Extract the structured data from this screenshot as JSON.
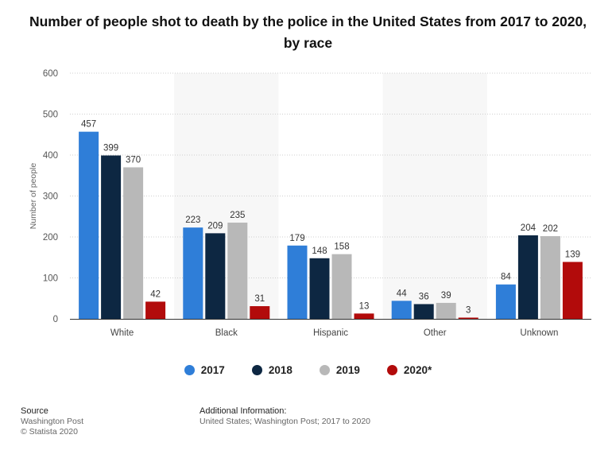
{
  "chart_data": {
    "type": "bar",
    "title": "Number of people shot to death by the police in the United States from 2017 to 2020, by race",
    "title_line1": "Number of people shot to death by the police in the United States from 2017 to 2020,",
    "title_line2": "by race",
    "xlabel": "",
    "ylabel": "Number of people",
    "ylim": [
      0,
      600
    ],
    "yticks": [
      0,
      100,
      200,
      300,
      400,
      500,
      600
    ],
    "grid": true,
    "legend_position": "bottom",
    "categories": [
      "White",
      "Black",
      "Hispanic",
      "Other",
      "Unknown"
    ],
    "series": [
      {
        "name": "2017",
        "color": "#2f7ed8",
        "values": [
          457,
          223,
          179,
          44,
          84
        ]
      },
      {
        "name": "2018",
        "color": "#0d2742",
        "values": [
          399,
          209,
          148,
          36,
          204
        ]
      },
      {
        "name": "2019",
        "color": "#b8b8b8",
        "values": [
          370,
          235,
          158,
          39,
          202
        ]
      },
      {
        "name": "2020*",
        "color": "#b20b0b",
        "values": [
          42,
          31,
          13,
          3,
          139
        ]
      }
    ]
  },
  "footer": {
    "source_heading": "Source",
    "source_line1": "Washington Post",
    "source_line2": "© Statista 2020",
    "info_heading": "Additional Information:",
    "info_text": "United States; Washington Post; 2017 to 2020"
  }
}
